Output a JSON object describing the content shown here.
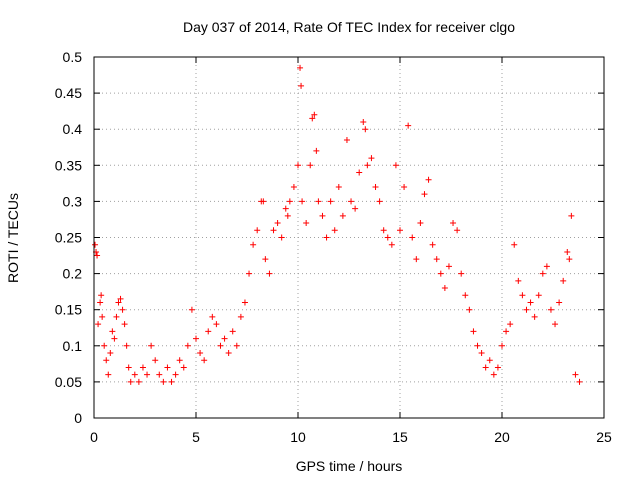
{
  "chart_data": {
    "type": "scatter",
    "title": "Day 037 of 2014, Rate Of TEC Index for receiver clgo",
    "xlabel": "GPS time / hours",
    "ylabel": "ROTI / TECUs",
    "xlim": [
      0,
      25
    ],
    "ylim": [
      0,
      0.5
    ],
    "xticks": [
      0,
      5,
      10,
      15,
      20,
      25
    ],
    "xtick_labels": [
      "0",
      "5",
      "10",
      "15",
      "20",
      "25"
    ],
    "yticks": [
      0,
      0.05,
      0.1,
      0.15,
      0.2,
      0.25,
      0.3,
      0.35,
      0.4,
      0.45,
      0.5
    ],
    "ytick_labels": [
      "0",
      "0.05",
      "0.1",
      "0.15",
      "0.2",
      "0.25",
      "0.3",
      "0.35",
      "0.4",
      "0.45",
      "0.5"
    ],
    "grid": true,
    "marker": "+",
    "color": "#ff0000",
    "series": [
      {
        "name": "ROTI",
        "points": [
          [
            0.05,
            0.24
          ],
          [
            0.1,
            0.23
          ],
          [
            0.15,
            0.225
          ],
          [
            0.2,
            0.13
          ],
          [
            0.3,
            0.16
          ],
          [
            0.35,
            0.17
          ],
          [
            0.4,
            0.14
          ],
          [
            0.5,
            0.1
          ],
          [
            0.6,
            0.08
          ],
          [
            0.7,
            0.06
          ],
          [
            0.8,
            0.09
          ],
          [
            0.9,
            0.12
          ],
          [
            1.0,
            0.11
          ],
          [
            1.1,
            0.14
          ],
          [
            1.2,
            0.16
          ],
          [
            1.3,
            0.165
          ],
          [
            1.4,
            0.15
          ],
          [
            1.5,
            0.13
          ],
          [
            1.6,
            0.1
          ],
          [
            1.7,
            0.07
          ],
          [
            1.8,
            0.05
          ],
          [
            2.0,
            0.06
          ],
          [
            2.2,
            0.05
          ],
          [
            2.4,
            0.07
          ],
          [
            2.6,
            0.06
          ],
          [
            2.8,
            0.1
          ],
          [
            3.0,
            0.08
          ],
          [
            3.2,
            0.06
          ],
          [
            3.4,
            0.05
          ],
          [
            3.6,
            0.07
          ],
          [
            3.8,
            0.05
          ],
          [
            4.0,
            0.06
          ],
          [
            4.2,
            0.08
          ],
          [
            4.4,
            0.07
          ],
          [
            4.6,
            0.1
          ],
          [
            4.8,
            0.15
          ],
          [
            5.0,
            0.11
          ],
          [
            5.2,
            0.09
          ],
          [
            5.4,
            0.08
          ],
          [
            5.6,
            0.12
          ],
          [
            5.8,
            0.14
          ],
          [
            6.0,
            0.13
          ],
          [
            6.2,
            0.1
          ],
          [
            6.4,
            0.11
          ],
          [
            6.6,
            0.09
          ],
          [
            6.8,
            0.12
          ],
          [
            7.0,
            0.1
          ],
          [
            7.2,
            0.14
          ],
          [
            7.4,
            0.16
          ],
          [
            7.6,
            0.2
          ],
          [
            7.8,
            0.24
          ],
          [
            8.0,
            0.26
          ],
          [
            8.2,
            0.3
          ],
          [
            8.3,
            0.3
          ],
          [
            8.4,
            0.22
          ],
          [
            8.6,
            0.2
          ],
          [
            8.8,
            0.26
          ],
          [
            9.0,
            0.27
          ],
          [
            9.2,
            0.25
          ],
          [
            9.4,
            0.29
          ],
          [
            9.5,
            0.28
          ],
          [
            9.6,
            0.3
          ],
          [
            9.8,
            0.32
          ],
          [
            10.0,
            0.35
          ],
          [
            10.1,
            0.485
          ],
          [
            10.15,
            0.46
          ],
          [
            10.2,
            0.3
          ],
          [
            10.4,
            0.27
          ],
          [
            10.6,
            0.35
          ],
          [
            10.7,
            0.415
          ],
          [
            10.8,
            0.42
          ],
          [
            10.9,
            0.37
          ],
          [
            11.0,
            0.3
          ],
          [
            11.2,
            0.28
          ],
          [
            11.4,
            0.25
          ],
          [
            11.6,
            0.3
          ],
          [
            11.8,
            0.26
          ],
          [
            12.0,
            0.32
          ],
          [
            12.2,
            0.28
          ],
          [
            12.4,
            0.385
          ],
          [
            12.6,
            0.3
          ],
          [
            12.8,
            0.29
          ],
          [
            13.0,
            0.34
          ],
          [
            13.2,
            0.41
          ],
          [
            13.3,
            0.4
          ],
          [
            13.4,
            0.35
          ],
          [
            13.6,
            0.36
          ],
          [
            13.8,
            0.32
          ],
          [
            14.0,
            0.3
          ],
          [
            14.2,
            0.26
          ],
          [
            14.4,
            0.25
          ],
          [
            14.6,
            0.24
          ],
          [
            14.8,
            0.35
          ],
          [
            15.0,
            0.26
          ],
          [
            15.2,
            0.32
          ],
          [
            15.4,
            0.405
          ],
          [
            15.6,
            0.25
          ],
          [
            15.8,
            0.22
          ],
          [
            16.0,
            0.27
          ],
          [
            16.2,
            0.31
          ],
          [
            16.4,
            0.33
          ],
          [
            16.6,
            0.24
          ],
          [
            16.8,
            0.22
          ],
          [
            17.0,
            0.2
          ],
          [
            17.2,
            0.18
          ],
          [
            17.4,
            0.21
          ],
          [
            17.6,
            0.27
          ],
          [
            17.8,
            0.26
          ],
          [
            18.0,
            0.2
          ],
          [
            18.2,
            0.17
          ],
          [
            18.4,
            0.15
          ],
          [
            18.6,
            0.12
          ],
          [
            18.8,
            0.1
          ],
          [
            19.0,
            0.09
          ],
          [
            19.2,
            0.07
          ],
          [
            19.4,
            0.08
          ],
          [
            19.6,
            0.06
          ],
          [
            19.8,
            0.07
          ],
          [
            20.0,
            0.1
          ],
          [
            20.2,
            0.12
          ],
          [
            20.4,
            0.13
          ],
          [
            20.6,
            0.24
          ],
          [
            20.8,
            0.19
          ],
          [
            21.0,
            0.17
          ],
          [
            21.2,
            0.15
          ],
          [
            21.4,
            0.16
          ],
          [
            21.6,
            0.14
          ],
          [
            21.8,
            0.17
          ],
          [
            22.0,
            0.2
          ],
          [
            22.2,
            0.21
          ],
          [
            22.4,
            0.15
          ],
          [
            22.6,
            0.13
          ],
          [
            22.8,
            0.16
          ],
          [
            23.0,
            0.19
          ],
          [
            23.2,
            0.23
          ],
          [
            23.3,
            0.22
          ],
          [
            23.4,
            0.28
          ],
          [
            23.6,
            0.06
          ],
          [
            23.8,
            0.05
          ]
        ]
      }
    ]
  }
}
